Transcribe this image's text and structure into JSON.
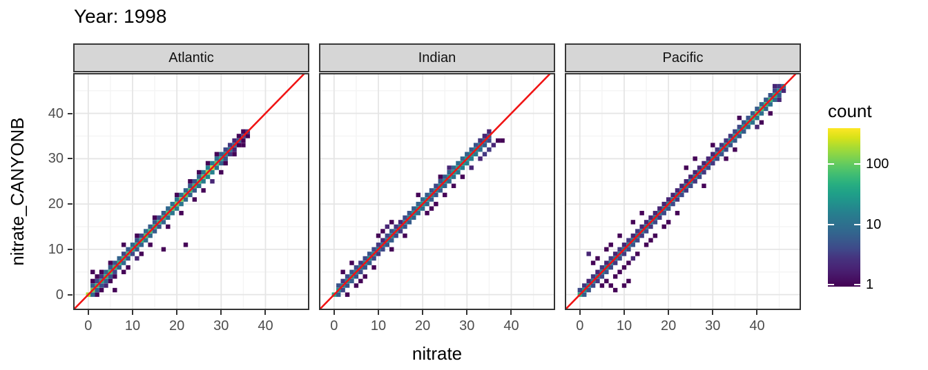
{
  "title": "Year: 1998",
  "axes": {
    "x_label": "nitrate",
    "y_label": "nitrate_CANYONB",
    "x_ticks": [
      0,
      10,
      20,
      30,
      40
    ],
    "y_ticks": [
      0,
      10,
      20,
      30,
      40
    ],
    "x_minor": [
      5,
      15,
      25,
      35,
      45
    ],
    "y_minor": [
      5,
      15,
      25,
      35,
      45
    ]
  },
  "legend": {
    "title": "count",
    "ticks": [
      100,
      10,
      1
    ],
    "log_min": -0.03,
    "log_max": 2.6
  },
  "colors": {
    "identity_line": "#f01414",
    "panel_border": "#333333",
    "strip_fill": "#d6d6d6",
    "grid_major": "#e5e5e5",
    "grid_minor": "#f4f4f4",
    "tick_mark": "#333333",
    "tick_text": "#4d4d4d",
    "text": "#000000",
    "viridis": [
      "#440154",
      "#471365",
      "#482475",
      "#46327e",
      "#3f4889",
      "#38598c",
      "#31688e",
      "#2c748e",
      "#26818e",
      "#21918c",
      "#1fa088",
      "#28ae80",
      "#3fbc73",
      "#5ec962",
      "#84d44b",
      "#aadc32",
      "#d8e219",
      "#fde725"
    ]
  },
  "chart_data": {
    "type": "heatmap",
    "subtype": "bin2d-scatter-comparison",
    "title": "Year: 1998",
    "xlabel": "nitrate",
    "ylabel": "nitrate_CANYONB",
    "count_scale": "log10",
    "identity_line": true,
    "x_domain": [
      -3.4,
      49.9
    ],
    "y_domain": [
      -3.4,
      48.9
    ],
    "bin_size": 1,
    "facet_note": "diag_counts[i] is bin count at (i,i); upper_counts[i] at (i,i+1); lower_counts[i] at (i,i-1); scatter entries are [x,y,count]",
    "facets": [
      {
        "name": "Atlantic",
        "diag_counts": [
          200,
          120,
          60,
          45,
          55,
          70,
          60,
          50,
          55,
          60,
          50,
          45,
          60,
          80,
          70,
          55,
          50,
          60,
          70,
          90,
          110,
          130,
          100,
          70,
          60,
          70,
          90,
          170,
          240,
          90,
          40,
          22,
          14,
          9,
          6,
          4,
          3
        ],
        "upper_counts": [
          0,
          6,
          4,
          3,
          8,
          6,
          5,
          7,
          4,
          6,
          8,
          5,
          4,
          9,
          6,
          5,
          4,
          6,
          8,
          10,
          12,
          10,
          8,
          6,
          5,
          8,
          12,
          16,
          14,
          10,
          6,
          4,
          3,
          2,
          1,
          1,
          0
        ],
        "lower_counts": [
          0,
          8,
          6,
          5,
          7,
          5,
          4,
          6,
          8,
          5,
          4,
          6,
          7,
          10,
          8,
          6,
          5,
          7,
          9,
          12,
          14,
          12,
          9,
          7,
          6,
          9,
          14,
          18,
          16,
          12,
          7,
          5,
          3,
          2,
          1,
          1,
          1
        ],
        "scatter": [
          [
            2,
            0,
            1
          ],
          [
            3,
            1,
            1
          ],
          [
            4,
            2,
            2
          ],
          [
            5,
            3,
            1
          ],
          [
            6,
            4,
            1
          ],
          [
            2,
            4,
            1
          ],
          [
            3,
            5,
            1
          ],
          [
            1,
            3,
            1
          ],
          [
            8,
            5,
            1
          ],
          [
            9,
            6,
            1
          ],
          [
            5,
            7,
            1
          ],
          [
            8,
            11,
            1
          ],
          [
            11,
            8,
            2
          ],
          [
            12,
            9,
            1
          ],
          [
            14,
            11,
            1
          ],
          [
            11,
            13,
            1
          ],
          [
            17,
            10,
            1
          ],
          [
            22,
            11,
            1
          ],
          [
            18,
            15,
            1
          ],
          [
            15,
            17,
            1
          ],
          [
            21,
            18,
            1
          ],
          [
            24,
            21,
            1
          ],
          [
            20,
            22,
            1
          ],
          [
            26,
            23,
            1
          ],
          [
            23,
            25,
            1
          ],
          [
            28,
            25,
            2
          ],
          [
            25,
            27,
            1
          ],
          [
            30,
            27,
            1
          ],
          [
            27,
            29,
            1
          ],
          [
            31,
            29,
            1
          ],
          [
            29,
            31,
            1
          ],
          [
            33,
            31,
            1
          ],
          [
            35,
            33,
            1
          ],
          [
            6,
            1,
            1
          ],
          [
            1,
            5,
            1
          ]
        ]
      },
      {
        "name": "Indian",
        "diag_counts": [
          40,
          25,
          18,
          22,
          25,
          18,
          15,
          18,
          22,
          17,
          14,
          12,
          17,
          20,
          15,
          12,
          15,
          18,
          22,
          25,
          28,
          22,
          18,
          17,
          20,
          22,
          25,
          30,
          35,
          32,
          28,
          24,
          18,
          12,
          7,
          5
        ],
        "upper_counts": [
          0,
          5,
          3,
          4,
          5,
          4,
          3,
          4,
          5,
          4,
          3,
          2,
          4,
          5,
          3,
          2,
          4,
          5,
          6,
          7,
          8,
          6,
          5,
          4,
          5,
          6,
          7,
          8,
          9,
          8,
          7,
          6,
          5,
          4,
          3,
          2
        ],
        "lower_counts": [
          0,
          6,
          4,
          5,
          6,
          5,
          4,
          5,
          6,
          4,
          3,
          4,
          5,
          6,
          4,
          3,
          5,
          6,
          7,
          8,
          9,
          7,
          6,
          5,
          6,
          7,
          8,
          10,
          12,
          14,
          15,
          14,
          12,
          9,
          6,
          4
        ],
        "scatter": [
          [
            3,
            0,
            1
          ],
          [
            5,
            2,
            1
          ],
          [
            6,
            3,
            1
          ],
          [
            9,
            6,
            1
          ],
          [
            13,
            10,
            1
          ],
          [
            2,
            5,
            1
          ],
          [
            10,
            13,
            1
          ],
          [
            11,
            14,
            1
          ],
          [
            12,
            15,
            2
          ],
          [
            13,
            16,
            1
          ],
          [
            16,
            13,
            1
          ],
          [
            21,
            18,
            1
          ],
          [
            22,
            19,
            1
          ],
          [
            23,
            20,
            1
          ],
          [
            19,
            22,
            1
          ],
          [
            25,
            22,
            1
          ],
          [
            27,
            24,
            1
          ],
          [
            31,
            28,
            2
          ],
          [
            33,
            30,
            2
          ],
          [
            34,
            31,
            3
          ],
          [
            35,
            32,
            3
          ],
          [
            36,
            33,
            2
          ],
          [
            37,
            34,
            1
          ],
          [
            38,
            34,
            1
          ],
          [
            34,
            35,
            2
          ],
          [
            33,
            34,
            3
          ],
          [
            29,
            26,
            1
          ],
          [
            26,
            28,
            2
          ],
          [
            24,
            26,
            1
          ],
          [
            7,
            4,
            1
          ],
          [
            4,
            7,
            1
          ]
        ]
      },
      {
        "name": "Pacific",
        "diag_counts": [
          45,
          28,
          20,
          16,
          14,
          16,
          18,
          15,
          13,
          11,
          13,
          15,
          13,
          11,
          13,
          15,
          16,
          15,
          13,
          15,
          17,
          16,
          15,
          13,
          15,
          17,
          16,
          15,
          13,
          15,
          17,
          19,
          21,
          23,
          21,
          26,
          31,
          36,
          42,
          65,
          85,
          75,
          55,
          65,
          45,
          22,
          12
        ],
        "upper_counts": [
          4,
          3,
          2,
          3,
          2,
          3,
          2,
          3,
          2,
          3,
          2,
          3,
          2,
          3,
          2,
          2,
          2,
          2,
          2,
          2,
          2,
          2,
          2,
          2,
          2,
          2,
          2,
          2,
          2,
          2,
          2,
          3,
          3,
          3,
          3,
          4,
          4,
          5,
          5,
          6,
          6,
          7,
          6,
          5,
          4,
          3,
          0
        ],
        "lower_counts": [
          0,
          6,
          5,
          4,
          3,
          4,
          5,
          4,
          3,
          4,
          3,
          4,
          5,
          4,
          3,
          4,
          3,
          4,
          3,
          4,
          5,
          4,
          3,
          4,
          3,
          4,
          3,
          4,
          3,
          4,
          3,
          4,
          5,
          4,
          5,
          6,
          5,
          6,
          8,
          10,
          12,
          10,
          8,
          10,
          8,
          6,
          2
        ],
        "scatter": [
          [
            2,
            9,
            2
          ],
          [
            3,
            7,
            1
          ],
          [
            5,
            2,
            1
          ],
          [
            6,
            3,
            1
          ],
          [
            7,
            2,
            1
          ],
          [
            8,
            4,
            1
          ],
          [
            9,
            5,
            1
          ],
          [
            10,
            6,
            1
          ],
          [
            11,
            7,
            1
          ],
          [
            6,
            10,
            1
          ],
          [
            4,
            8,
            1
          ],
          [
            12,
            8,
            2
          ],
          [
            13,
            9,
            1
          ],
          [
            16,
            12,
            1
          ],
          [
            17,
            13,
            1
          ],
          [
            19,
            15,
            1
          ],
          [
            20,
            16,
            1
          ],
          [
            26,
            30,
            1
          ],
          [
            24,
            28,
            1
          ],
          [
            14,
            18,
            1
          ],
          [
            12,
            16,
            1
          ],
          [
            9,
            13,
            1
          ],
          [
            7,
            11,
            1
          ],
          [
            33,
            30,
            1
          ],
          [
            35,
            32,
            1
          ],
          [
            41,
            38,
            1
          ],
          [
            43,
            40,
            1
          ],
          [
            10,
            2,
            1
          ],
          [
            11,
            3,
            1
          ],
          [
            8,
            1,
            1
          ],
          [
            15,
            11,
            1
          ],
          [
            22,
            18,
            1
          ],
          [
            28,
            24,
            1
          ],
          [
            30,
            33,
            1
          ],
          [
            36,
            39,
            1
          ],
          [
            44,
            46,
            2
          ],
          [
            45,
            43,
            2
          ],
          [
            40,
            37,
            2
          ]
        ]
      }
    ],
    "legend": {
      "title": "count",
      "tick_values": [
        1,
        10,
        100
      ]
    }
  }
}
